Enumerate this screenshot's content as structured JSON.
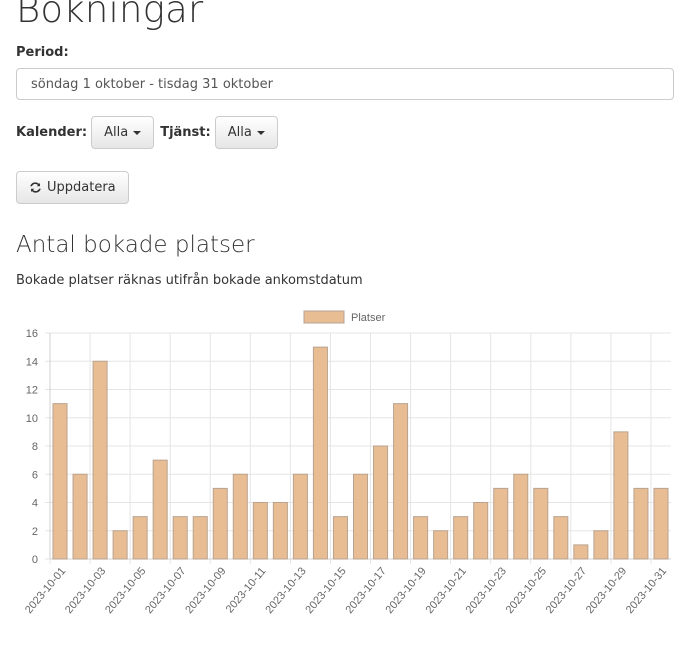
{
  "page": {
    "title": "Bokningar"
  },
  "period": {
    "label": "Period:",
    "value": "söndag 1 oktober - tisdag 31 oktober"
  },
  "filters": {
    "calendar_label": "Kalender:",
    "calendar_value": "Alla",
    "service_label": "Tjänst:",
    "service_value": "Alla"
  },
  "update_button": {
    "label": "Uppdatera",
    "icon": "refresh-icon"
  },
  "section": {
    "title": "Antal bokade platser",
    "subtitle": "Bokade platser räknas utifrån bokade ankomstdatum"
  },
  "colors": {
    "bar_fill": "#e8bd93",
    "bar_border": "#b9a390",
    "grid": "#e5e5e5",
    "tick_text": "#666666"
  },
  "chart_data": {
    "type": "bar",
    "title": "",
    "xlabel": "",
    "ylabel": "",
    "legend": [
      "Platser"
    ],
    "legend_position": "top",
    "grid": true,
    "ylim": [
      0,
      16
    ],
    "yticks": [
      0,
      2,
      4,
      6,
      8,
      10,
      12,
      14,
      16
    ],
    "categories": [
      "2023-10-01",
      "2023-10-02",
      "2023-10-03",
      "2023-10-04",
      "2023-10-05",
      "2023-10-06",
      "2023-10-07",
      "2023-10-08",
      "2023-10-09",
      "2023-10-10",
      "2023-10-11",
      "2023-10-12",
      "2023-10-13",
      "2023-10-14",
      "2023-10-15",
      "2023-10-16",
      "2023-10-17",
      "2023-10-18",
      "2023-10-19",
      "2023-10-20",
      "2023-10-21",
      "2023-10-22",
      "2023-10-23",
      "2023-10-24",
      "2023-10-25",
      "2023-10-26",
      "2023-10-27",
      "2023-10-28",
      "2023-10-29",
      "2023-10-30",
      "2023-10-31"
    ],
    "visible_xtick_labels": [
      "2023-10-01",
      "2023-10-03",
      "2023-10-05",
      "2023-10-07",
      "2023-10-09",
      "2023-10-11",
      "2023-10-13",
      "2023-10-15",
      "2023-10-17",
      "2023-10-19",
      "2023-10-21",
      "2023-10-23",
      "2023-10-25",
      "2023-10-27",
      "2023-10-29",
      "2023-10-31"
    ],
    "series": [
      {
        "name": "Platser",
        "values": [
          11,
          6,
          14,
          2,
          3,
          7,
          3,
          3,
          5,
          6,
          4,
          4,
          6,
          15,
          3,
          6,
          8,
          11,
          3,
          2,
          3,
          4,
          5,
          6,
          5,
          3,
          1,
          2,
          9,
          5,
          5
        ]
      }
    ]
  }
}
